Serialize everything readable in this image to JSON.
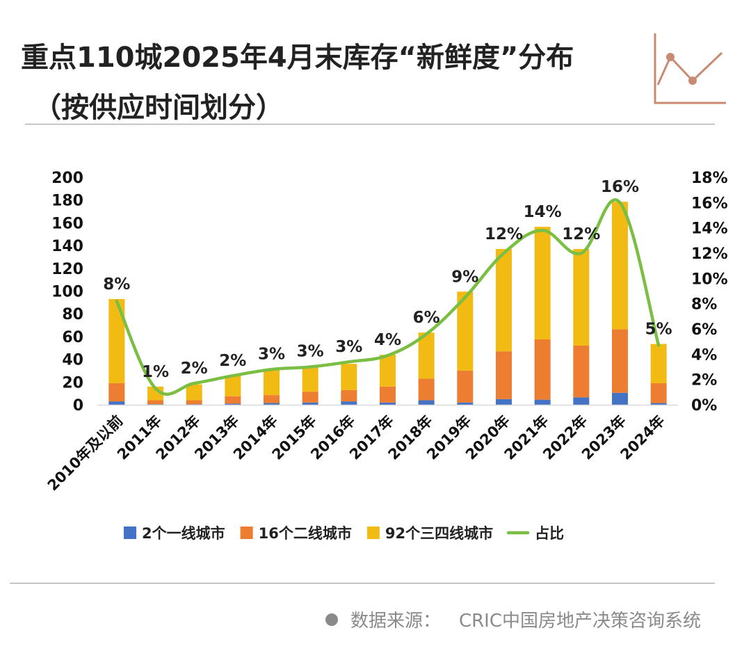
{
  "title_line1": "重点110城2025年4月末库存“新鲜度”分布",
  "title_line2": "（按供应时间划分）",
  "source": {
    "label": "数据来源：",
    "value": "CRIC中国房地产决策咨询系统"
  },
  "colors": {
    "tier1": "#4472C4",
    "tier2": "#ED7D31",
    "tier34": "#F2BB13",
    "share": "#7ABF43",
    "deco": "#C98A73"
  },
  "chart_data": {
    "type": "bar",
    "stacked": true,
    "title": "重点110城2025年4月末库存“新鲜度”分布（按供应时间划分）",
    "categories": [
      "2010年及以前",
      "2011年",
      "2012年",
      "2013年",
      "2014年",
      "2015年",
      "2016年",
      "2017年",
      "2018年",
      "2019年",
      "2020年",
      "2021年",
      "2022年",
      "2023年",
      "2024年"
    ],
    "series": [
      {
        "name": "2个一线城市",
        "color_key": "tier1",
        "values": [
          3,
          0.5,
          0.5,
          1,
          1.5,
          2,
          3,
          2,
          4,
          2,
          5,
          4.5,
          6.5,
          10.5,
          1.5
        ]
      },
      {
        "name": "16个二线城市",
        "color_key": "tier2",
        "values": [
          16,
          3.5,
          3.5,
          6.5,
          7,
          9.5,
          10,
          14,
          19,
          28,
          42,
          53,
          45.5,
          56,
          17.5
        ]
      },
      {
        "name": "92个三四线城市",
        "color_key": "tier34",
        "values": [
          74,
          12,
          14,
          18,
          23,
          22.5,
          23,
          28,
          40.5,
          69.5,
          90,
          99,
          85,
          112,
          34.5
        ]
      }
    ],
    "line_series": {
      "name": "占比",
      "color_key": "share",
      "axis": "right",
      "values": [
        8.2,
        1.3,
        1.7,
        2.3,
        2.8,
        3.0,
        3.4,
        3.9,
        5.6,
        8.5,
        12.0,
        13.8,
        12.0,
        16.0,
        4.7
      ],
      "labels": [
        "8%",
        "1%",
        "2%",
        "2%",
        "3%",
        "3%",
        "3%",
        "4%",
        "6%",
        "9%",
        "12%",
        "14%",
        "12%",
        "16%",
        "5%"
      ]
    },
    "y_left": {
      "min": 0,
      "max": 200,
      "step": 20,
      "ticks": [
        "0",
        "20",
        "40",
        "60",
        "80",
        "100",
        "120",
        "140",
        "160",
        "180",
        "200"
      ]
    },
    "y_right": {
      "min": 0,
      "max": 18,
      "step": 2,
      "ticks": [
        "0%",
        "2%",
        "4%",
        "6%",
        "8%",
        "10%",
        "12%",
        "14%",
        "16%",
        "18%"
      ]
    },
    "legend": {
      "position": "bottom",
      "entries": [
        "2个一线城市",
        "16个二线城市",
        "92个三四线城市",
        "占比"
      ]
    },
    "grid": false
  }
}
